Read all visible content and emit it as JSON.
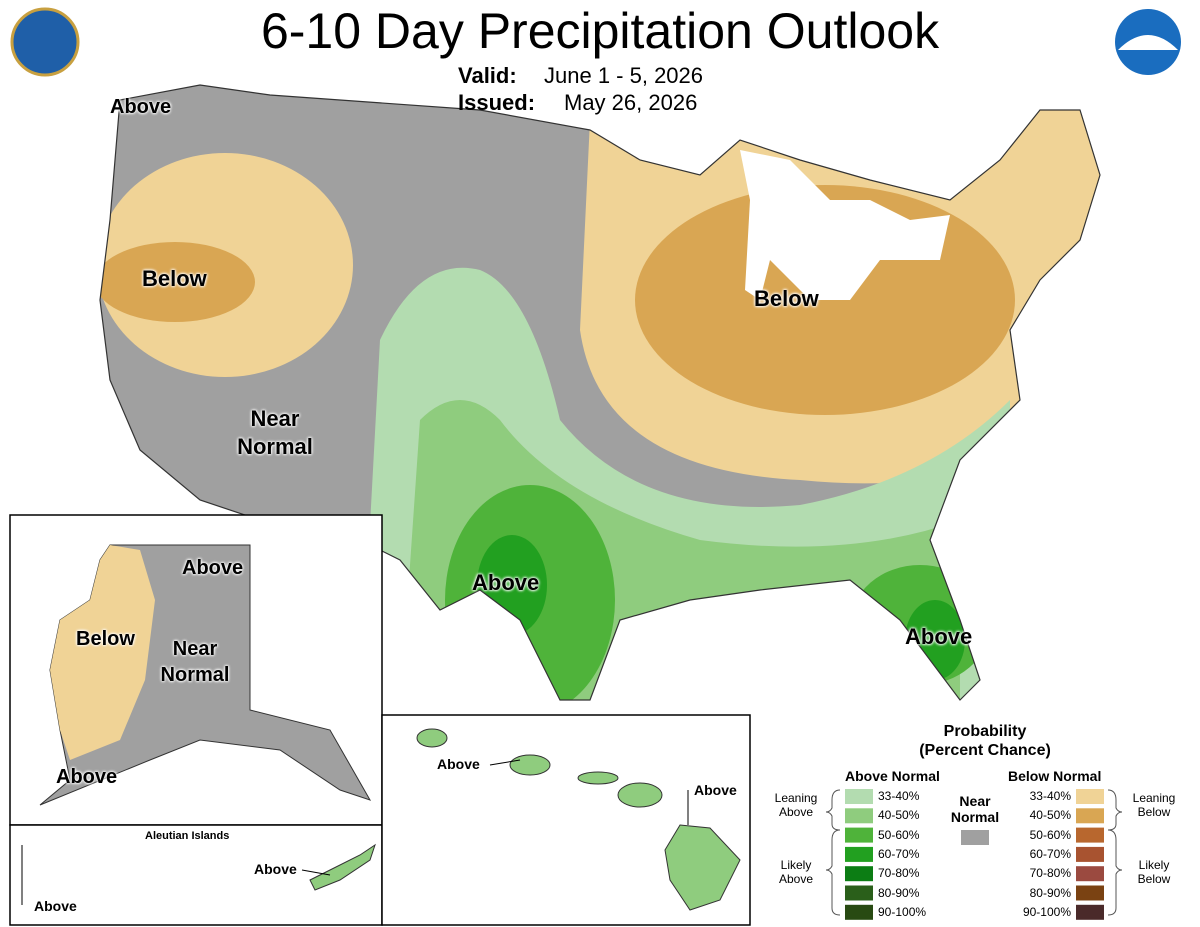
{
  "header": {
    "title": "6-10 Day Precipitation Outlook",
    "valid_label": "Valid:",
    "valid_value": "June 1 - 5, 2026",
    "issued_label": "Issued:",
    "issued_value": "May 26, 2026"
  },
  "conus_labels": [
    "Above",
    "Below",
    "Near Normal",
    "Above",
    "Below",
    "Above"
  ],
  "alaska_labels": [
    "Above",
    "Below",
    "Near Normal",
    "Above"
  ],
  "aleutians": {
    "title": "Aleutian Islands",
    "labels": [
      "Above",
      "Above"
    ]
  },
  "hawaii_labels": [
    "Above",
    "Above"
  ],
  "legend": {
    "title": "Probability",
    "subtitle": "(Percent Chance)",
    "above_header": "Above Normal",
    "below_header": "Below Normal",
    "near_normal": {
      "label": "Near Normal",
      "color": "#a0a0a0"
    },
    "leaning_above": "Leaning Above",
    "likely_above": "Likely Above",
    "leaning_below": "Leaning Below",
    "likely_below": "Likely Below",
    "above": [
      {
        "label": "33-40%",
        "color": "#b3dcb0"
      },
      {
        "label": "40-50%",
        "color": "#8fcc7e"
      },
      {
        "label": "50-60%",
        "color": "#4fb33a"
      },
      {
        "label": "60-70%",
        "color": "#22a020"
      },
      {
        "label": "70-80%",
        "color": "#0c7d14"
      },
      {
        "label": "80-90%",
        "color": "#2a5f1a"
      },
      {
        "label": "90-100%",
        "color": "#284a12"
      }
    ],
    "below": [
      {
        "label": "33-40%",
        "color": "#f0d396"
      },
      {
        "label": "40-50%",
        "color": "#d9a653"
      },
      {
        "label": "50-60%",
        "color": "#b8672e"
      },
      {
        "label": "60-70%",
        "color": "#a85330"
      },
      {
        "label": "70-80%",
        "color": "#9b4a40"
      },
      {
        "label": "80-90%",
        "color": "#7a4212"
      },
      {
        "label": "90-100%",
        "color": "#4a2a2a"
      }
    ]
  }
}
